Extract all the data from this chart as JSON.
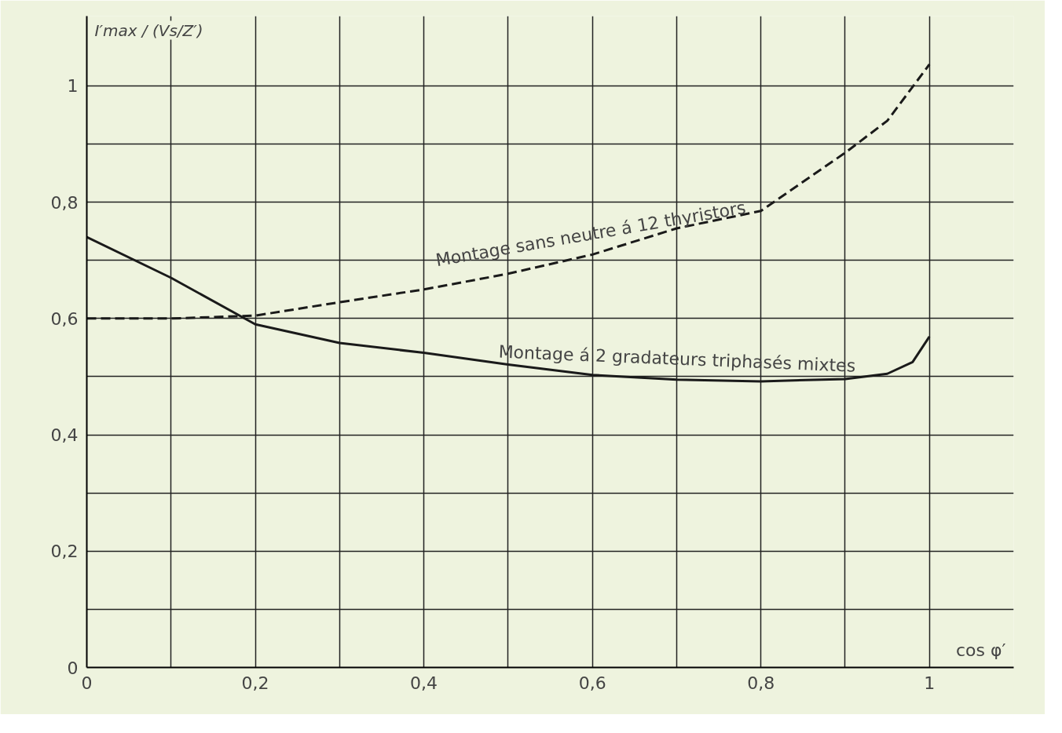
{
  "chart_data": {
    "type": "line",
    "xlabel": "cos φ′",
    "ylabel": "I′max / (Vs/Z′)",
    "xlim": [
      0,
      1.1
    ],
    "ylim": [
      0,
      1.12
    ],
    "xticks": [
      0,
      {
        "value": 0.1,
        "label": null
      },
      {
        "value": 0.2,
        "label": "0,2"
      },
      {
        "value": 0.3,
        "label": null
      },
      {
        "value": 0.4,
        "label": "0,4"
      },
      {
        "value": 0.5,
        "label": null
      },
      {
        "value": 0.6,
        "label": "0,6"
      },
      {
        "value": 0.7,
        "label": null
      },
      {
        "value": 0.8,
        "label": "0,8"
      },
      {
        "value": 0.9,
        "label": null
      },
      1
    ],
    "yticks": [
      0,
      {
        "value": 0.1,
        "label": null
      },
      {
        "value": 0.2,
        "label": "0,2"
      },
      {
        "value": 0.3,
        "label": null
      },
      {
        "value": 0.4,
        "label": "0,4"
      },
      {
        "value": 0.5,
        "label": null
      },
      {
        "value": 0.6,
        "label": "0,6"
      },
      {
        "value": 0.7,
        "label": null
      },
      {
        "value": 0.8,
        "label": "0,8"
      },
      {
        "value": 0.9,
        "label": null
      },
      1
    ],
    "grid": true,
    "marker": "none",
    "series": [
      {
        "name": "Montage sans neutre á 12 thyristors",
        "color": "#1a1a1a",
        "line_style": "dashed",
        "x": [
          0,
          0.1,
          0.2,
          0.3,
          0.4,
          0.5,
          0.6,
          0.7,
          0.8,
          0.9,
          0.95,
          1.0
        ],
        "values": [
          0.6,
          0.6,
          0.605,
          0.628,
          0.65,
          0.677,
          0.71,
          0.755,
          0.785,
          0.885,
          0.94,
          1.037
        ]
      },
      {
        "name": "Montage á 2 gradateurs triphasés mixtes",
        "color": "#1a1a1a",
        "line_style": "solid",
        "x": [
          0,
          0.1,
          0.2,
          0.3,
          0.4,
          0.5,
          0.6,
          0.7,
          0.8,
          0.9,
          0.95,
          0.98,
          1.0
        ],
        "values": [
          0.74,
          0.67,
          0.59,
          0.558,
          0.541,
          0.521,
          0.503,
          0.495,
          0.492,
          0.496,
          0.505,
          0.525,
          0.569
        ]
      }
    ]
  }
}
